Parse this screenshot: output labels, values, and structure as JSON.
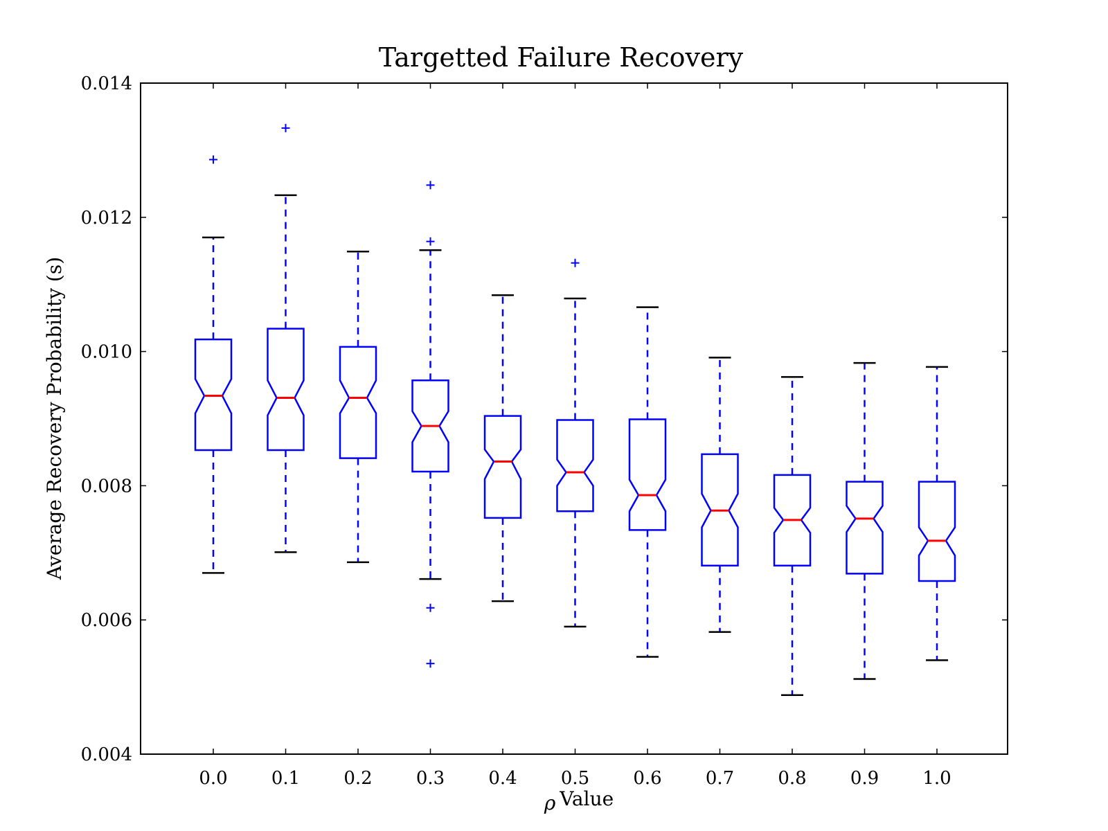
{
  "chart_data": {
    "type": "boxplot",
    "title": "Targetted Failure Recovery",
    "xlabel_symbol": "ρ",
    "xlabel": "Value",
    "ylabel": "Average Recovery Probability (s)",
    "ylim": [
      0.004,
      0.014
    ],
    "yticks": [
      "0.004",
      "0.006",
      "0.008",
      "0.010",
      "0.012",
      "0.014"
    ],
    "notched": true,
    "colors": {
      "box": "#0000ff",
      "median": "#ff0000",
      "cap": "#000000",
      "outlier": "#0000ff",
      "axes": "#000000"
    },
    "categories": [
      "0.0",
      "0.1",
      "0.2",
      "0.3",
      "0.4",
      "0.5",
      "0.6",
      "0.7",
      "0.8",
      "0.9",
      "1.0"
    ],
    "boxes": [
      {
        "whisker_low": 0.0067,
        "q1": 0.00853,
        "median": 0.00934,
        "notch_low": 0.00908,
        "notch_high": 0.00959,
        "q3": 0.01018,
        "whisker_high": 0.0117,
        "outliers": [
          0.01286
        ]
      },
      {
        "whisker_low": 0.00701,
        "q1": 0.00853,
        "median": 0.00931,
        "notch_low": 0.00905,
        "notch_high": 0.00957,
        "q3": 0.01034,
        "whisker_high": 0.01233,
        "outliers": [
          0.01333
        ]
      },
      {
        "whisker_low": 0.00686,
        "q1": 0.00841,
        "median": 0.00931,
        "notch_low": 0.00908,
        "notch_high": 0.00957,
        "q3": 0.01007,
        "whisker_high": 0.01149,
        "outliers": []
      },
      {
        "whisker_low": 0.00661,
        "q1": 0.00821,
        "median": 0.00889,
        "notch_low": 0.00865,
        "notch_high": 0.00911,
        "q3": 0.00957,
        "whisker_high": 0.01151,
        "outliers": [
          0.01248,
          0.01164,
          0.00618,
          0.00535
        ]
      },
      {
        "whisker_low": 0.00628,
        "q1": 0.00752,
        "median": 0.00836,
        "notch_low": 0.0081,
        "notch_high": 0.00854,
        "q3": 0.00904,
        "whisker_high": 0.01084,
        "outliers": []
      },
      {
        "whisker_low": 0.0059,
        "q1": 0.00762,
        "median": 0.0082,
        "notch_low": 0.008,
        "notch_high": 0.00839,
        "q3": 0.00898,
        "whisker_high": 0.01079,
        "outliers": [
          0.01132
        ]
      },
      {
        "whisker_low": 0.00545,
        "q1": 0.00734,
        "median": 0.00786,
        "notch_low": 0.00762,
        "notch_high": 0.00809,
        "q3": 0.00899,
        "whisker_high": 0.01066,
        "outliers": []
      },
      {
        "whisker_low": 0.00582,
        "q1": 0.00681,
        "median": 0.00763,
        "notch_low": 0.00738,
        "notch_high": 0.00788,
        "q3": 0.00847,
        "whisker_high": 0.00991,
        "outliers": []
      },
      {
        "whisker_low": 0.00488,
        "q1": 0.00681,
        "median": 0.00749,
        "notch_low": 0.0073,
        "notch_high": 0.00767,
        "q3": 0.00816,
        "whisker_high": 0.00962,
        "outliers": []
      },
      {
        "whisker_low": 0.00512,
        "q1": 0.00669,
        "median": 0.00751,
        "notch_low": 0.00731,
        "notch_high": 0.0077,
        "q3": 0.00806,
        "whisker_high": 0.00983,
        "outliers": []
      },
      {
        "whisker_low": 0.0054,
        "q1": 0.00658,
        "median": 0.00718,
        "notch_low": 0.00696,
        "notch_high": 0.00738,
        "q3": 0.00806,
        "whisker_high": 0.00977,
        "outliers": []
      }
    ]
  }
}
